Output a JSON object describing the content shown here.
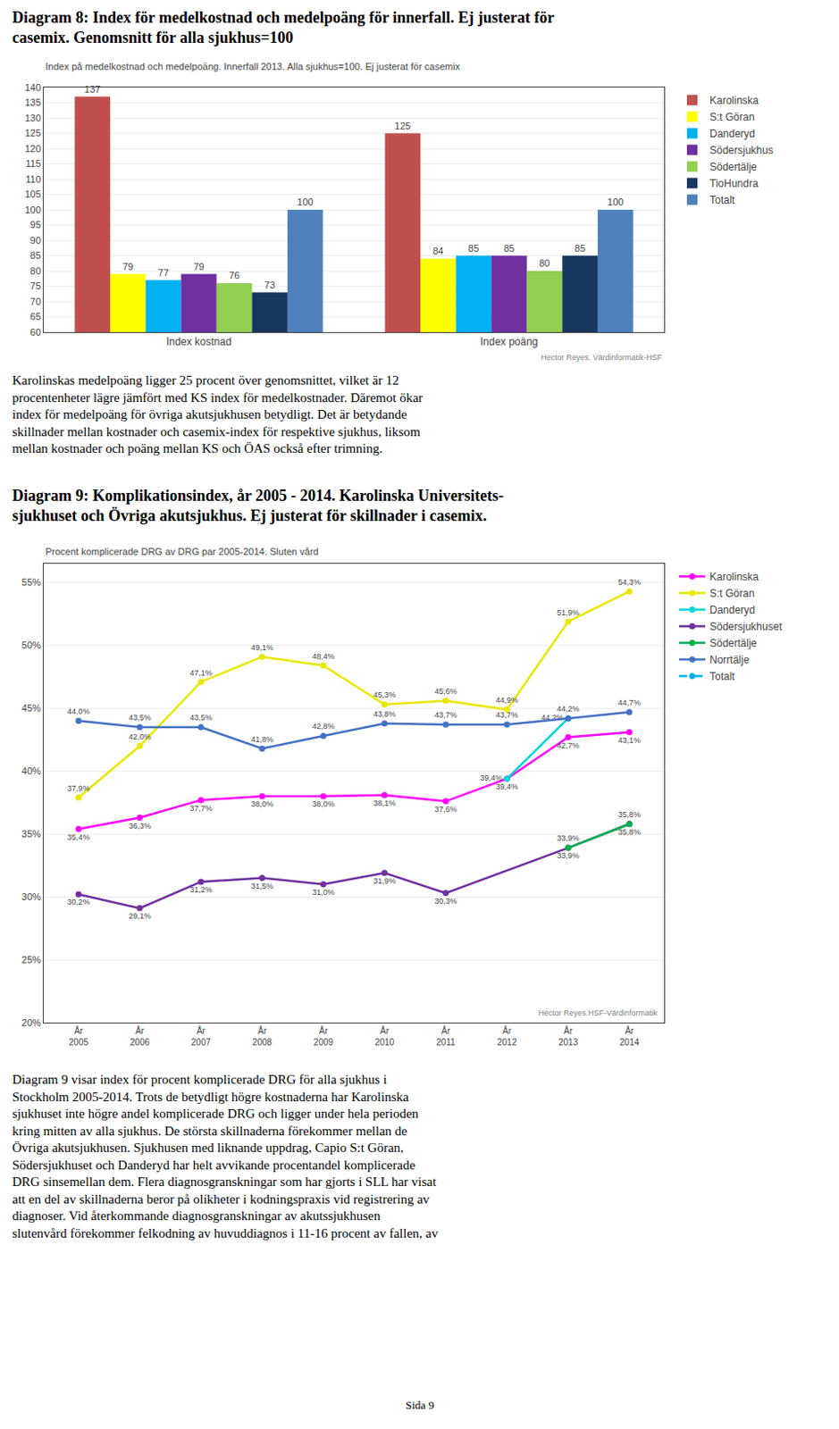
{
  "chart_data": [
    {
      "type": "bar",
      "title": "Diagram 8: Index för medelkostnad och medelpoäng för innerfall. Ej justerat för\ncasemix. Genomsnitt för alla sjukhus=100",
      "subtitle": "Index på medelkostnad och medelpoäng. Innerfall 2013. Alla sjukhus=100. Ej justerat för casemix",
      "categories": [
        "Index kostnad",
        "Index poäng"
      ],
      "series": [
        {
          "name": "Karolinska",
          "color": "#c0504d",
          "values": [
            137,
            125
          ]
        },
        {
          "name": "S:t Göran",
          "color": "#ffff00",
          "values": [
            79,
            84
          ]
        },
        {
          "name": "Danderyd",
          "color": "#00b0f0",
          "values": [
            77,
            85
          ]
        },
        {
          "name": "Södersjukhus",
          "color": "#7030a0",
          "values": [
            79,
            85
          ]
        },
        {
          "name": "Södertälje",
          "color": "#92d050",
          "values": [
            76,
            80
          ]
        },
        {
          "name": "TioHundra",
          "color": "#17375e",
          "values": [
            73,
            85
          ]
        },
        {
          "name": "Totalt",
          "color": "#4f81bd",
          "values": [
            100,
            100
          ]
        }
      ],
      "ylim": [
        60,
        140
      ],
      "yticks": [
        60,
        65,
        70,
        75,
        80,
        85,
        90,
        95,
        100,
        105,
        110,
        115,
        120,
        125,
        130,
        135,
        140
      ],
      "grid": true,
      "legend": "right",
      "data_labels": true,
      "annotations": [
        "Hector Reyes. Värdinformatik-HSF",
        "Karolinskas medelpoäng ligger 25 procent över genomsnittet, vilket är 12\nprocentenheter lägre jämfört med KS index för medelkostnader. Däremot ökar\nindex för medelpoäng för övriga akutsjukhusen betydligt. Det är betydande\nskillnader mellan kostnader och casemix-index för respektive sjukhus, liksom\nmellan kostnader och poäng mellan KS och ÖAS också efter trimning."
      ]
    },
    {
      "type": "line",
      "title": "Diagram 9: Komplikationsindex, år 2005 - 2014. Karolinska Universitets-\nsjukhuset och Övriga akutsjukhus. Ej justerat för skillnader i casemix.",
      "subtitle": "Procent komplicerade DRG av DRG par 2005-2014. Sluten vård",
      "categories": [
        "År\n2005",
        "År\n2006",
        "År\n2007",
        "År\n2008",
        "År\n2009",
        "År\n2010",
        "År\n2011",
        "År\n2012",
        "År\n2013",
        "År\n2014"
      ],
      "series": [
        {
          "name": "Karolinska",
          "color": "#ff00ff",
          "marker": "circle",
          "line_style": "solid",
          "values": [
            0.354,
            0.363,
            0.377,
            0.38,
            0.38,
            0.381,
            0.376,
            0.394,
            0.427,
            0.431
          ],
          "value_labels": [
            "35,4%",
            "36,3%",
            "37,7%",
            "38,0%",
            "38,0%",
            "38,1%",
            "37,6%",
            "39,4%",
            "42,7%",
            "43,1%"
          ]
        },
        {
          "name": "S:t Göran",
          "color": "#e8e800",
          "marker": "circle",
          "line_style": "solid",
          "values": [
            0.379,
            0.42,
            0.471,
            0.491,
            0.484,
            0.453,
            0.456,
            0.449,
            0.519,
            0.543
          ],
          "value_labels": [
            "37,9%",
            "42,0%",
            "47,1%",
            "49,1%",
            "48,4%",
            "45,3%",
            "45,6%",
            "44,9%",
            "51,9%",
            "54,3%"
          ]
        },
        {
          "name": "Danderyd",
          "color": "#00d8d8",
          "marker": "circle",
          "line_style": "solid",
          "values": [
            null,
            null,
            null,
            null,
            null,
            null,
            null,
            0.394,
            0.442,
            null
          ],
          "value_labels": [
            null,
            null,
            null,
            null,
            null,
            null,
            null,
            "39,4%",
            "44,2%",
            null
          ]
        },
        {
          "name": "Södersjukhuset",
          "color": "#7030a0",
          "marker": "circle",
          "line_style": "solid",
          "values": [
            0.302,
            0.291,
            0.312,
            0.315,
            0.31,
            0.319,
            0.303,
            null,
            0.339,
            0.358
          ],
          "value_labels": [
            "30,2%",
            "29,1%",
            "31,2%",
            "31,5%",
            "31,0%",
            "31,9%",
            "30,3%",
            null,
            "33,9%",
            "35,8%"
          ]
        },
        {
          "name": "Södertälje",
          "color": "#00b050",
          "marker": "circle",
          "line_style": "solid",
          "values": [
            null,
            null,
            null,
            null,
            null,
            null,
            null,
            null,
            0.339,
            0.358
          ],
          "value_labels": [
            null,
            null,
            null,
            null,
            null,
            null,
            null,
            null,
            "33,9%",
            "35,8%"
          ]
        },
        {
          "name": "Norrtälje",
          "color": "#4472c4",
          "marker": "circle",
          "line_style": "solid",
          "values": [
            0.44,
            0.435,
            0.435,
            0.418,
            0.428,
            0.438,
            0.437,
            0.437,
            0.442,
            0.447
          ],
          "value_labels": [
            "44,0%",
            "43,5%",
            "43,5%",
            "41,8%",
            "42,8%",
            "43,8%",
            "43,7%",
            "43,7%",
            "44,2%",
            "44,7%"
          ]
        },
        {
          "name": "Totalt",
          "color": "#00b0f0",
          "marker": "circle",
          "line_style": "dashed",
          "values": [
            null,
            null,
            null,
            null,
            null,
            null,
            null,
            null,
            null,
            null
          ],
          "value_labels": [
            null,
            null,
            null,
            null,
            null,
            null,
            null,
            null,
            null,
            null
          ]
        }
      ],
      "ylim": [
        0.2,
        0.565
      ],
      "yticks": [
        {
          "value": 0.2,
          "label": "20%"
        },
        {
          "value": 0.25,
          "label": "25%"
        },
        {
          "value": 0.3,
          "label": "30%"
        },
        {
          "value": 0.35,
          "label": "35%"
        },
        {
          "value": 0.4,
          "label": "40%"
        },
        {
          "value": 0.45,
          "label": "45%"
        },
        {
          "value": 0.5,
          "label": "50%"
        },
        {
          "value": 0.55,
          "label": "55%"
        }
      ],
      "grid": true,
      "legend": "right",
      "data_labels": true,
      "annotations": [
        "Hector Reyes.HSF-Värdinformatik",
        "Diagram 9 visar index för procent komplicerade DRG för alla sjukhus i\nStockholm 2005-2014. Trots de betydligt högre kostnaderna har Karolinska\nsjukhuset inte högre andel komplicerade DRG och ligger under hela perioden\nkring mitten av alla sjukhus. De största skillnaderna förekommer mellan de\nÖvriga akutsjukhusen. Sjukhusen med liknande uppdrag, Capio S:t Göran,\nSödersjukhuset och Danderyd har helt avvikande procentandel komplicerade\nDRG sinsemellan dem. Flera diagnosgranskningar som har gjorts i SLL har visat\natt en del av skillnaderna beror på olikheter i kodningspraxis vid registrering av\ndiagnoser. Vid återkommande diagnosgranskningar av akutssjukhusen\nslutenvård förekommer felkodning av huvuddiagnos i 11-16 procent av fallen, av",
        "Sida 9"
      ]
    }
  ]
}
